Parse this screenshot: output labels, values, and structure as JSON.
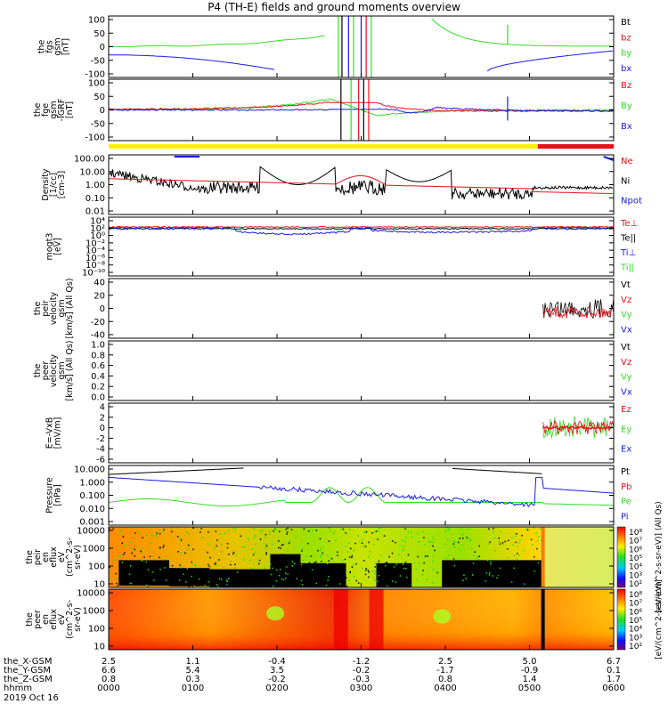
{
  "title": "P4 (TH-E) fields and ground moments overview",
  "colors": {
    "black": "#000000",
    "red": "#e8101a",
    "green": "#33dd22",
    "blue": "#1a1ae6",
    "yellow": "#ffee00"
  },
  "chart_data": {
    "type": "line",
    "x_axis": {
      "rows": [
        {
          "label": "the_X-GSM",
          "values": [
            "2.5",
            "1.1",
            "-0.4",
            "-1.2",
            "2.5",
            "5.0",
            "6.7"
          ]
        },
        {
          "label": "the_Y-GSM",
          "values": [
            "6.6",
            "5.4",
            "3.5",
            "-0.2",
            "-1.7",
            "-0.9",
            "0.1"
          ]
        },
        {
          "label": "the_Z-GSM",
          "values": [
            "0.8",
            "0.3",
            "-0.2",
            "-0.3",
            "0.8",
            "1.4",
            "1.7"
          ]
        },
        {
          "label": "hhmm",
          "values": [
            "0000",
            "0100",
            "0200",
            "0300",
            "0400",
            "0500",
            "0600"
          ]
        }
      ],
      "date": "2019 Oct 16"
    },
    "panels": [
      {
        "ylabel": [
          "the",
          "fgs",
          "gsm",
          "[nT]"
        ],
        "ticks": [
          "100",
          "50",
          "0",
          "-50",
          "-100"
        ],
        "legend": [
          {
            "name": "Bt",
            "color": "black"
          },
          {
            "name": "bz",
            "color": "red"
          },
          {
            "name": "by",
            "color": "green"
          },
          {
            "name": "bx",
            "color": "blue"
          }
        ]
      },
      {
        "ylabel": [
          "the",
          "fge",
          "gsm",
          "-IGRF",
          "[nT]"
        ],
        "ticks": [
          "100",
          "50",
          "0",
          "-50",
          "-100"
        ],
        "legend": [
          {
            "name": "Bz",
            "color": "red"
          },
          {
            "name": "By",
            "color": "green"
          },
          {
            "name": "Bx",
            "color": "blue"
          }
        ]
      },
      {
        "ylabel": [
          "Density",
          "[1/cc]",
          "[cm-3]"
        ],
        "ticks": [
          "100.00",
          "10.00",
          "1.00",
          "0.10",
          "0.01"
        ],
        "legend": [
          {
            "name": "Ne",
            "color": "red"
          },
          {
            "name": "Ni",
            "color": "black"
          },
          {
            "name": "Npot",
            "color": "blue"
          }
        ]
      },
      {
        "ylabel": [
          "mogt3",
          "[eV]"
        ],
        "ticks": [
          "10⁴",
          "10²",
          "10⁰",
          "10⁻²",
          "10⁻⁴",
          "10⁻⁶",
          "10⁻⁸",
          "10⁻¹⁰"
        ],
        "legend": [
          {
            "name": "Te⊥",
            "color": "red"
          },
          {
            "name": "Te||",
            "color": "black"
          },
          {
            "name": "Ti⊥",
            "color": "blue"
          },
          {
            "name": "Ti||",
            "color": "green"
          }
        ]
      },
      {
        "ylabel": [
          "the",
          "peir",
          "velocity",
          "gsm",
          "[km/s] (All Qs)"
        ],
        "ticks": [
          "40",
          "20",
          "0",
          "-20",
          "-40"
        ],
        "legend": [
          {
            "name": "Vt",
            "color": "black"
          },
          {
            "name": "Vz",
            "color": "red"
          },
          {
            "name": "Vy",
            "color": "green"
          },
          {
            "name": "Vx",
            "color": "blue"
          }
        ]
      },
      {
        "ylabel": [
          "the",
          "peer",
          "velocity",
          "gsm",
          "[km/s] (All Qs)"
        ],
        "ticks": [
          "1.0",
          "0.8",
          "0.6",
          "0.4",
          "0.2",
          "0.0"
        ],
        "legend": [
          {
            "name": "Vt",
            "color": "black"
          },
          {
            "name": "Vz",
            "color": "red"
          },
          {
            "name": "Vy",
            "color": "green"
          },
          {
            "name": "Vx",
            "color": "blue"
          }
        ]
      },
      {
        "ylabel": [
          "E=-VxB",
          "[mV/m]"
        ],
        "ticks": [
          "4",
          "2",
          "0",
          "-2",
          "-4",
          "-6"
        ],
        "legend": [
          {
            "name": "Ez",
            "color": "red"
          },
          {
            "name": "Ey",
            "color": "green"
          },
          {
            "name": "Ex",
            "color": "blue"
          }
        ]
      },
      {
        "ylabel": [
          "Pressure",
          "[nPa]"
        ],
        "ticks": [
          "10.000",
          "1.000",
          "0.100",
          "0.010",
          "0.001"
        ],
        "legend": [
          {
            "name": "Pt",
            "color": "black"
          },
          {
            "name": "Pb",
            "color": "red"
          },
          {
            "name": "Pe",
            "color": "green"
          },
          {
            "name": "Pi",
            "color": "blue"
          }
        ]
      },
      {
        "ylabel": [
          "the",
          "peir",
          "en",
          "eflux",
          "eV",
          "(cm^2-s-",
          "sr-eV)"
        ],
        "ticks": [
          "10000",
          "1000",
          "100",
          "10"
        ],
        "legend": []
      },
      {
        "ylabel": [
          "the",
          "peer",
          "en",
          "eflux",
          "eV",
          "(cm^2-s-",
          "sr-eV)"
        ],
        "ticks": [
          "10000",
          "1000",
          "100",
          "10"
        ],
        "legend": []
      }
    ],
    "colorbars": [
      {
        "ticks": [
          "10⁸",
          "10⁷",
          "10⁶",
          "10⁵",
          "10⁴",
          "10³",
          "10²"
        ],
        "label": "[eV/(cm^2-s-sr-eV)]  (All Qs)"
      },
      {
        "ticks": [
          "10⁸",
          "10⁷",
          "10⁶",
          "10⁵",
          "10⁴",
          "10³",
          "10²"
        ],
        "label": "[eV/(cm^2-s-sr-eV)]"
      }
    ]
  }
}
